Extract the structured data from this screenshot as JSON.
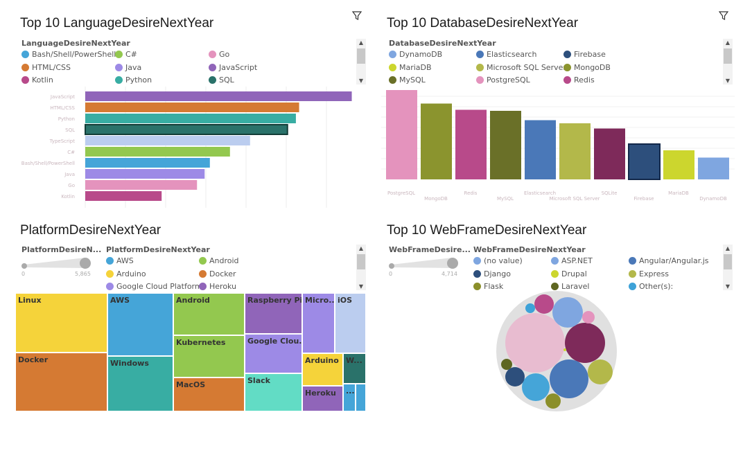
{
  "panels": {
    "language": {
      "title": "Top 10 LanguageDesireNextYear",
      "legend_title": "LanguageDesireNextYear",
      "legend": [
        {
          "label": "Bash/Shell/PowerShell",
          "color": "#45a5d8"
        },
        {
          "label": "C#",
          "color": "#93c84f"
        },
        {
          "label": "Go",
          "color": "#e493bd"
        },
        {
          "label": "HTML/CSS",
          "color": "#d57a33"
        },
        {
          "label": "Java",
          "color": "#9d8ae6"
        },
        {
          "label": "JavaScript",
          "color": "#9065b9"
        },
        {
          "label": "Kotlin",
          "color": "#b84a8a"
        },
        {
          "label": "Python",
          "color": "#38ada3"
        },
        {
          "label": "SQL",
          "color": "#2a726a"
        }
      ]
    },
    "database": {
      "title": "Top 10 DatabaseDesireNextYear",
      "legend_title": "DatabaseDesireNextYear",
      "legend": [
        {
          "label": "DynamoDB",
          "color": "#7fa6e0"
        },
        {
          "label": "Elasticsearch",
          "color": "#4a78b8"
        },
        {
          "label": "Firebase",
          "color": "#2d4f7c"
        },
        {
          "label": "MariaDB",
          "color": "#ccd62e"
        },
        {
          "label": "Microsoft SQL Server",
          "color": "#b3b84a"
        },
        {
          "label": "MongoDB",
          "color": "#8b942e"
        },
        {
          "label": "MySQL",
          "color": "#6a7028"
        },
        {
          "label": "PostgreSQL",
          "color": "#e493bd"
        },
        {
          "label": "Redis",
          "color": "#b84a8a"
        }
      ]
    },
    "platform": {
      "title": "PlatformDesireNextYear",
      "size_legend_title": "PlatformDesireN...",
      "size_min": "0",
      "size_max": "5,865",
      "legend_title": "PlatformDesireNextYear",
      "legend": [
        {
          "label": "AWS",
          "color": "#45a5d8"
        },
        {
          "label": "Android",
          "color": "#93c84f"
        },
        {
          "label": "Arduino",
          "color": "#f5d33a"
        },
        {
          "label": "Docker",
          "color": "#d57a33"
        },
        {
          "label": "Google Cloud Platform",
          "color": "#9d8ae6"
        },
        {
          "label": "Heroku",
          "color": "#9065b9"
        }
      ]
    },
    "webframe": {
      "title": "Top 10 WebFrameDesireNextYear",
      "size_legend_title": "WebFrameDesire...",
      "size_min": "0",
      "size_max": "4,714",
      "legend_title": "WebFrameDesireNextYear",
      "legend": [
        {
          "label": "(no value)",
          "color": "#7fa6e0"
        },
        {
          "label": "ASP.NET",
          "color": "#7fa6e0"
        },
        {
          "label": "Angular/Angular.js",
          "color": "#4a78b8"
        },
        {
          "label": "Django",
          "color": "#2d4f7c"
        },
        {
          "label": "Drupal",
          "color": "#ccd62e"
        },
        {
          "label": "Express",
          "color": "#b3b84a"
        },
        {
          "label": "Flask",
          "color": "#8b8f2a"
        },
        {
          "label": "Laravel",
          "color": "#5e6621"
        },
        {
          "label": "Other(s):",
          "color": "#3ea2d8"
        }
      ]
    }
  },
  "chart_data": [
    {
      "type": "bar",
      "orientation": "horizontal",
      "grid": true,
      "categories": [
        "JavaScript",
        "HTML/CSS",
        "Python",
        "SQL",
        "TypeScript",
        "C#",
        "Bash/Shell/PowerShell",
        "Java",
        "Go",
        "Kotlin"
      ],
      "values": [
        6.63,
        5.32,
        5.24,
        5.03,
        4.1,
        3.6,
        3.1,
        2.97,
        2.78,
        1.9
      ],
      "colors": [
        "#9065b9",
        "#d57a33",
        "#38ada3",
        "#2a726a",
        "#bbcdef",
        "#93c84f",
        "#45a5d8",
        "#9d8ae6",
        "#e493bd",
        "#b84a8a"
      ],
      "selected": "SQL",
      "xlim": [
        0,
        7
      ]
    },
    {
      "type": "bar",
      "orientation": "vertical",
      "grid": true,
      "categories": [
        "PostgreSQL",
        "MongoDB",
        "Redis",
        "MySQL",
        "Elasticsearch",
        "Microsoft SQL Server",
        "SQLite",
        "Firebase",
        "MariaDB",
        "DynamoDB"
      ],
      "values": [
        8.6,
        7.3,
        6.7,
        6.6,
        5.7,
        5.4,
        4.9,
        3.4,
        2.8,
        2.1
      ],
      "colors": [
        "#e493bd",
        "#8b942e",
        "#b84a8a",
        "#6a7028",
        "#4a78b8",
        "#b3b84a",
        "#7e2a5a",
        "#2d4f7c",
        "#ccd62e",
        "#7fa6e0"
      ],
      "selected": "Firebase",
      "ylim": [
        0,
        9
      ]
    },
    {
      "type": "treemap",
      "tiles": [
        {
          "label": "Linux",
          "color": "#f5d33a"
        },
        {
          "label": "Docker",
          "color": "#d57a33"
        },
        {
          "label": "AWS",
          "color": "#45a5d8"
        },
        {
          "label": "Windows",
          "color": "#38ada3"
        },
        {
          "label": "Android",
          "color": "#93c84f"
        },
        {
          "label": "Kubernetes",
          "color": "#93c84f"
        },
        {
          "label": "MacOS",
          "color": "#d57a33"
        },
        {
          "label": "Raspberry Pi",
          "color": "#9065b9"
        },
        {
          "label": "Google Clou...",
          "color": "#9d8ae6"
        },
        {
          "label": "Slack",
          "color": "#62dcc5"
        },
        {
          "label": "Micro...",
          "color": "#9d8ae6"
        },
        {
          "label": "iOS",
          "color": "#bbcdef"
        },
        {
          "label": "Arduino",
          "color": "#f5d33a"
        },
        {
          "label": "Heroku",
          "color": "#9065b9"
        },
        {
          "label": "W...",
          "color": "#2a726a"
        },
        {
          "label": "...",
          "color": "#45a5d8"
        },
        {
          "label": "",
          "color": "#45a5d8"
        }
      ]
    },
    {
      "type": "bubble",
      "bubbles": [
        {
          "color": "#e8bcd0",
          "size": 43
        },
        {
          "color": "#7e2a5a",
          "size": 29
        },
        {
          "color": "#4a78b8",
          "size": 28
        },
        {
          "color": "#7fa6e0",
          "size": 22
        },
        {
          "color": "#45a5d8",
          "size": 20
        },
        {
          "color": "#b3b84a",
          "size": 18
        },
        {
          "color": "#2d4f7c",
          "size": 14
        },
        {
          "color": "#b84a8a",
          "size": 14
        },
        {
          "color": "#8b8f2a",
          "size": 11
        },
        {
          "color": "#e493bd",
          "size": 9
        },
        {
          "color": "#5e6621",
          "size": 8
        },
        {
          "color": "#3ea2d8",
          "size": 7
        },
        {
          "color": "#ccd62e",
          "size": 2
        }
      ]
    }
  ]
}
